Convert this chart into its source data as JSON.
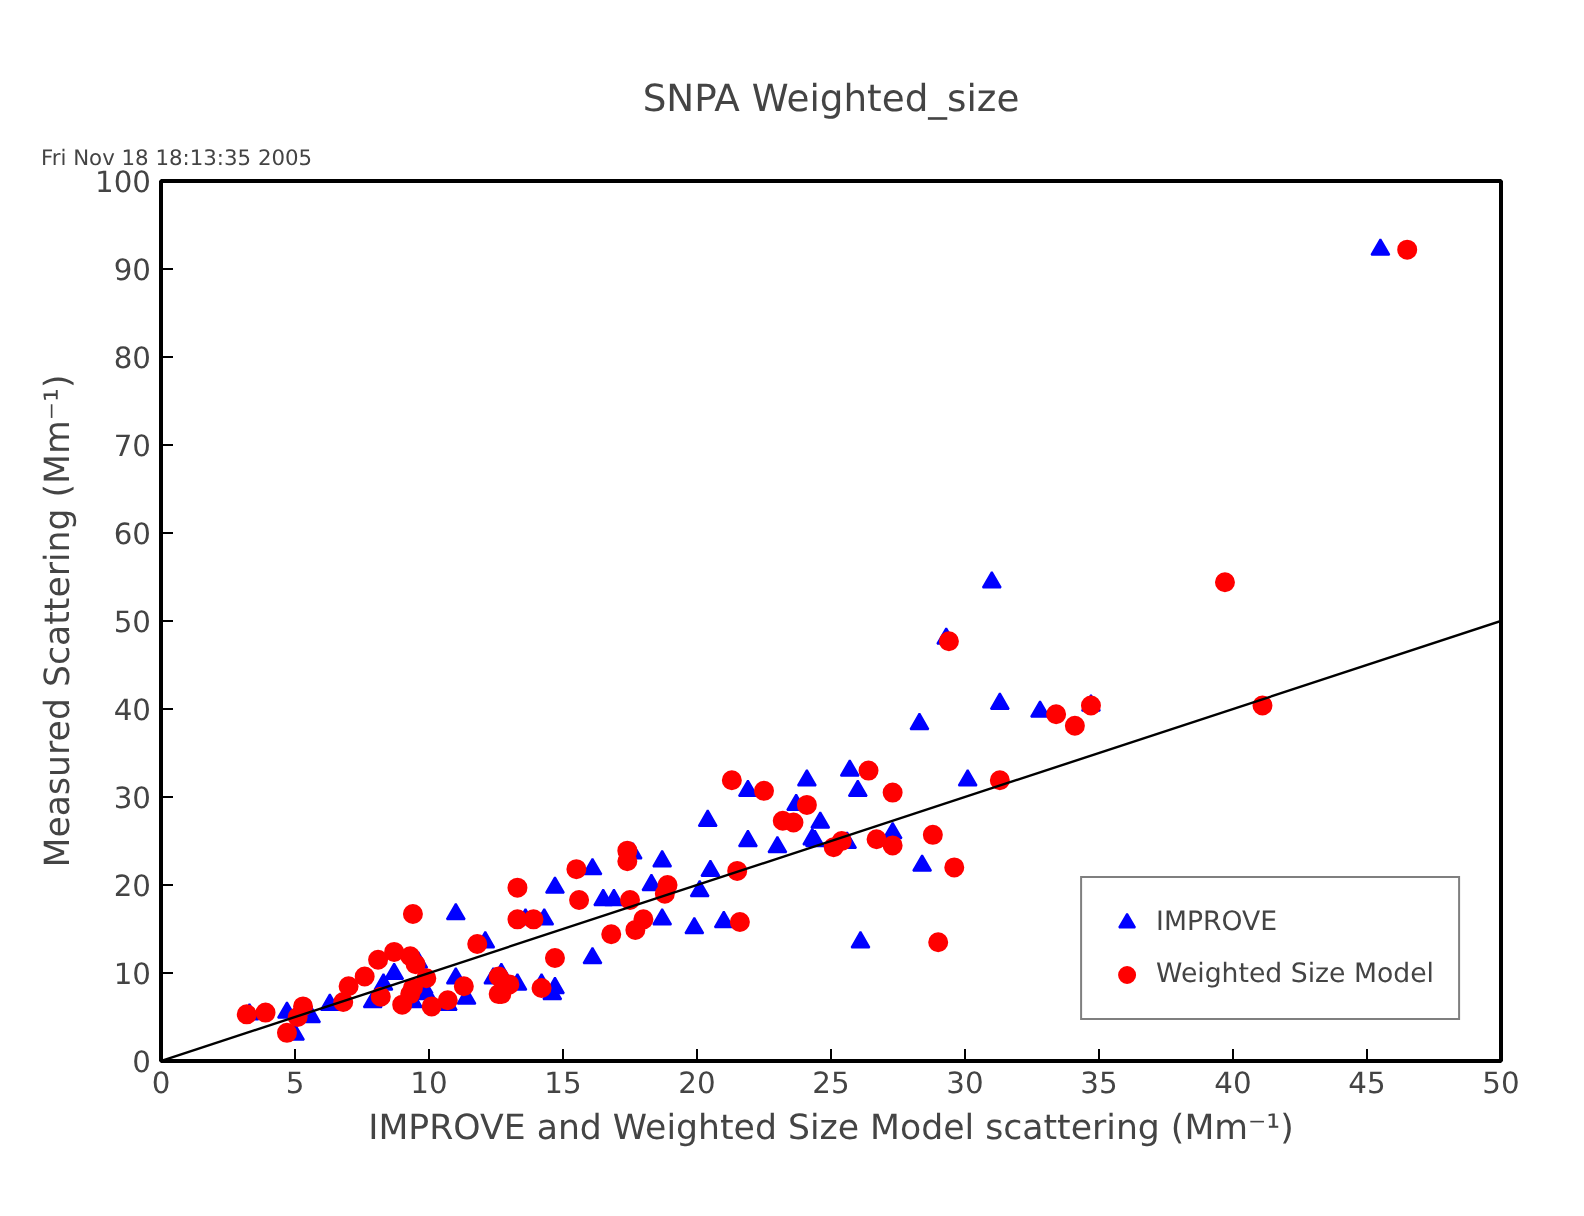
{
  "chart_data": {
    "type": "scatter",
    "title": "SNPA Weighted_size",
    "xlabel": "IMPROVE and Weighted Size Model scattering (Mm⁻¹)",
    "ylabel": "Measured Scattering (Mm⁻¹)",
    "annotations": [
      "Fri Nov 18 18:13:35 2005"
    ],
    "xlim": [
      0,
      50
    ],
    "ylim": [
      0,
      100
    ],
    "xticks": [
      0,
      5,
      10,
      15,
      20,
      25,
      30,
      35,
      40,
      45,
      50
    ],
    "yticks": [
      0,
      10,
      20,
      30,
      40,
      50,
      60,
      70,
      80,
      90,
      100
    ],
    "grid": false,
    "legend": "bottom right",
    "series": [
      {
        "name": "IMPROVE",
        "color": "#0000ff",
        "marker": "triangle",
        "x": [
          3.3,
          5.0,
          4.7,
          5.6,
          6.3,
          7.9,
          8.3,
          8.7,
          9.6,
          9.8,
          9.4,
          9.9,
          10.7,
          11.0,
          11.0,
          11.4,
          12.1,
          12.4,
          12.7,
          13.3,
          14.2,
          14.6,
          14.7,
          13.6,
          14.3,
          14.7,
          16.1,
          16.1,
          16.5,
          16.9,
          17.6,
          18.3,
          18.7,
          18.7,
          19.9,
          20.1,
          20.5,
          20.4,
          21.0,
          21.9,
          21.9,
          23.0,
          23.7,
          24.1,
          24.4,
          24.6,
          29.3,
          31.0,
          31.3,
          32.8,
          34.7,
          28.3,
          25.7,
          26.0,
          24.3,
          25.6,
          27.3,
          28.4,
          30.1,
          26.1,
          45.5
        ],
        "values": [
          5.3,
          3.0,
          5.5,
          5.0,
          6.4,
          6.7,
          8.7,
          9.9,
          11.2,
          8.3,
          6.7,
          7.6,
          6.4,
          16.7,
          9.4,
          7.1,
          13.5,
          9.4,
          9.9,
          8.7,
          8.7,
          7.6,
          8.3,
          16.1,
          16.1,
          19.7,
          11.7,
          21.8,
          18.3,
          18.3,
          23.6,
          20.0,
          22.7,
          16.1,
          15.1,
          19.3,
          21.6,
          27.3,
          15.8,
          30.7,
          25.0,
          24.3,
          29.1,
          31.9,
          25.0,
          27.1,
          48.0,
          54.4,
          40.6,
          39.7,
          40.4,
          38.3,
          33.0,
          30.7,
          25.2,
          24.8,
          25.9,
          22.2,
          31.9,
          13.5,
          92.2
        ]
      },
      {
        "name": "Weighted Size Model",
        "color": "#ff0000",
        "marker": "circle",
        "x": [
          3.2,
          3.9,
          4.7,
          5.3,
          5.1,
          6.8,
          7.0,
          7.6,
          8.1,
          8.7,
          9.3,
          9.5,
          9.4,
          9.9,
          8.2,
          9.0,
          9.3,
          9.4,
          10.1,
          10.7,
          11.3,
          11.8,
          12.7,
          12.6,
          12.6,
          13.0,
          14.2,
          13.3,
          13.3,
          13.9,
          14.7,
          15.5,
          15.6,
          16.8,
          17.4,
          17.4,
          17.5,
          17.7,
          18.0,
          18.9,
          18.8,
          21.3,
          22.5,
          21.5,
          21.6,
          23.2,
          23.6,
          24.1,
          29.4,
          33.4,
          34.1,
          34.7,
          26.4,
          27.3,
          31.3,
          25.4,
          25.1,
          26.7,
          27.3,
          28.8,
          29.6,
          29.0,
          39.7,
          41.1,
          46.5
        ],
        "values": [
          5.3,
          5.5,
          3.2,
          6.2,
          5.0,
          6.7,
          8.5,
          9.6,
          11.5,
          12.4,
          11.9,
          11.0,
          16.7,
          9.4,
          7.3,
          6.4,
          7.6,
          8.3,
          6.2,
          6.9,
          8.5,
          13.3,
          7.6,
          9.6,
          7.6,
          8.7,
          8.3,
          19.7,
          16.1,
          16.1,
          11.7,
          21.8,
          18.3,
          14.4,
          23.9,
          22.7,
          18.3,
          14.9,
          16.1,
          20.0,
          19.0,
          31.9,
          30.7,
          21.6,
          15.8,
          27.3,
          27.1,
          29.1,
          47.7,
          39.4,
          38.1,
          40.4,
          33.0,
          30.5,
          31.9,
          25.0,
          24.3,
          25.2,
          24.5,
          25.7,
          22.0,
          13.5,
          54.4,
          40.4,
          92.2
        ]
      },
      {
        "type": "line",
        "color": "#000000",
        "x": [
          0,
          50
        ],
        "values": [
          0,
          50
        ]
      }
    ]
  }
}
